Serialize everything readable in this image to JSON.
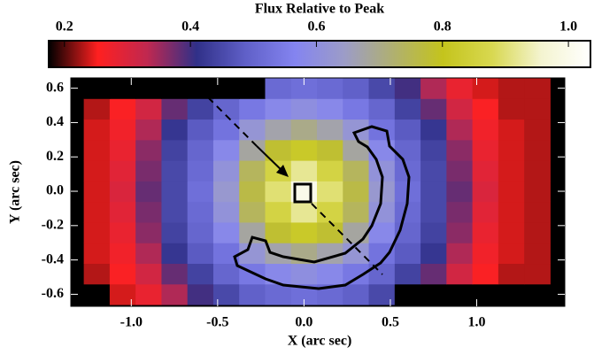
{
  "chart_data": {
    "type": "heatmap",
    "title": "Flux Relative to Peak",
    "xlabel": "X (arc sec)",
    "ylabel": "Y (arc sec)",
    "x": [
      -1.2,
      -1.05,
      -0.9,
      -0.75,
      -0.6,
      -0.45,
      -0.3,
      -0.15,
      0,
      0.15,
      0.3,
      0.45,
      0.6,
      0.75,
      0.9,
      1.05,
      1.2,
      1.35
    ],
    "y": [
      -0.6,
      -0.48,
      -0.36,
      -0.24,
      -0.12,
      0,
      0.12,
      0.24,
      0.36,
      0.48,
      0.6
    ],
    "values": [
      [
        0.1,
        0.24,
        0.28,
        0.34,
        0.4,
        0.45,
        0.49,
        0.51,
        0.52,
        0.51,
        0.49,
        0.45,
        0.1,
        0.1,
        0.1,
        0.1,
        0.1,
        0.1
      ],
      [
        0.23,
        0.26,
        0.31,
        0.38,
        0.44,
        0.5,
        0.54,
        0.58,
        0.6,
        0.58,
        0.54,
        0.5,
        0.44,
        0.38,
        0.31,
        0.26,
        0.23,
        0.23
      ],
      [
        0.24,
        0.27,
        0.34,
        0.42,
        0.48,
        0.53,
        0.62,
        0.67,
        0.7,
        0.67,
        0.62,
        0.53,
        0.48,
        0.42,
        0.34,
        0.27,
        0.24,
        0.23
      ],
      [
        0.24,
        0.28,
        0.36,
        0.44,
        0.5,
        0.58,
        0.68,
        0.78,
        0.82,
        0.78,
        0.68,
        0.58,
        0.5,
        0.44,
        0.36,
        0.28,
        0.24,
        0.23
      ],
      [
        0.24,
        0.29,
        0.37,
        0.45,
        0.51,
        0.61,
        0.74,
        0.86,
        0.92,
        0.86,
        0.74,
        0.61,
        0.51,
        0.45,
        0.37,
        0.29,
        0.24,
        0.23
      ],
      [
        0.24,
        0.3,
        0.38,
        0.45,
        0.52,
        0.63,
        0.76,
        0.9,
        1.0,
        0.9,
        0.76,
        0.63,
        0.52,
        0.45,
        0.38,
        0.3,
        0.24,
        0.23
      ],
      [
        0.24,
        0.29,
        0.37,
        0.45,
        0.51,
        0.61,
        0.74,
        0.86,
        0.92,
        0.86,
        0.74,
        0.61,
        0.51,
        0.45,
        0.37,
        0.29,
        0.24,
        0.23
      ],
      [
        0.24,
        0.28,
        0.36,
        0.44,
        0.5,
        0.58,
        0.68,
        0.78,
        0.82,
        0.78,
        0.68,
        0.58,
        0.5,
        0.44,
        0.36,
        0.28,
        0.24,
        0.23
      ],
      [
        0.24,
        0.27,
        0.34,
        0.42,
        0.48,
        0.53,
        0.62,
        0.67,
        0.7,
        0.67,
        0.62,
        0.53,
        0.48,
        0.42,
        0.34,
        0.27,
        0.24,
        0.23
      ],
      [
        0.23,
        0.26,
        0.31,
        0.38,
        0.44,
        0.5,
        0.54,
        0.58,
        0.6,
        0.58,
        0.54,
        0.5,
        0.44,
        0.38,
        0.31,
        0.26,
        0.23,
        0.23
      ],
      [
        0.1,
        0.1,
        0.1,
        0.1,
        0.1,
        0.1,
        0.1,
        0.51,
        0.52,
        0.51,
        0.49,
        0.45,
        0.4,
        0.34,
        0.28,
        0.24,
        0.23,
        0.23
      ]
    ],
    "xlim": [
      -1.35,
      1.51
    ],
    "ylim": [
      -0.67,
      0.66
    ],
    "xticks": [
      {
        "value": -1,
        "label": "-1.0"
      },
      -0.5,
      {
        "value": 0,
        "label": "0.0"
      },
      0.5,
      {
        "value": 1,
        "label": "1.0"
      }
    ],
    "yticks": [
      -0.6,
      -0.4,
      -0.2,
      {
        "value": 0,
        "label": "0.0"
      },
      0.2,
      0.4,
      0.6
    ],
    "clim": [
      0.175,
      1.035
    ],
    "cticks": [
      0.2,
      0.4,
      0.6,
      0.8,
      {
        "value": 1,
        "label": "1.0"
      }
    ],
    "colormap": [
      "#000000",
      "#ff2020",
      "#c02850",
      "#303088",
      "#6060c8",
      "#8484f0",
      "#9c9cc8",
      "#b0b070",
      "#c4c41c",
      "#d8d850",
      "#f4f4d0",
      "#ffffff"
    ]
  }
}
